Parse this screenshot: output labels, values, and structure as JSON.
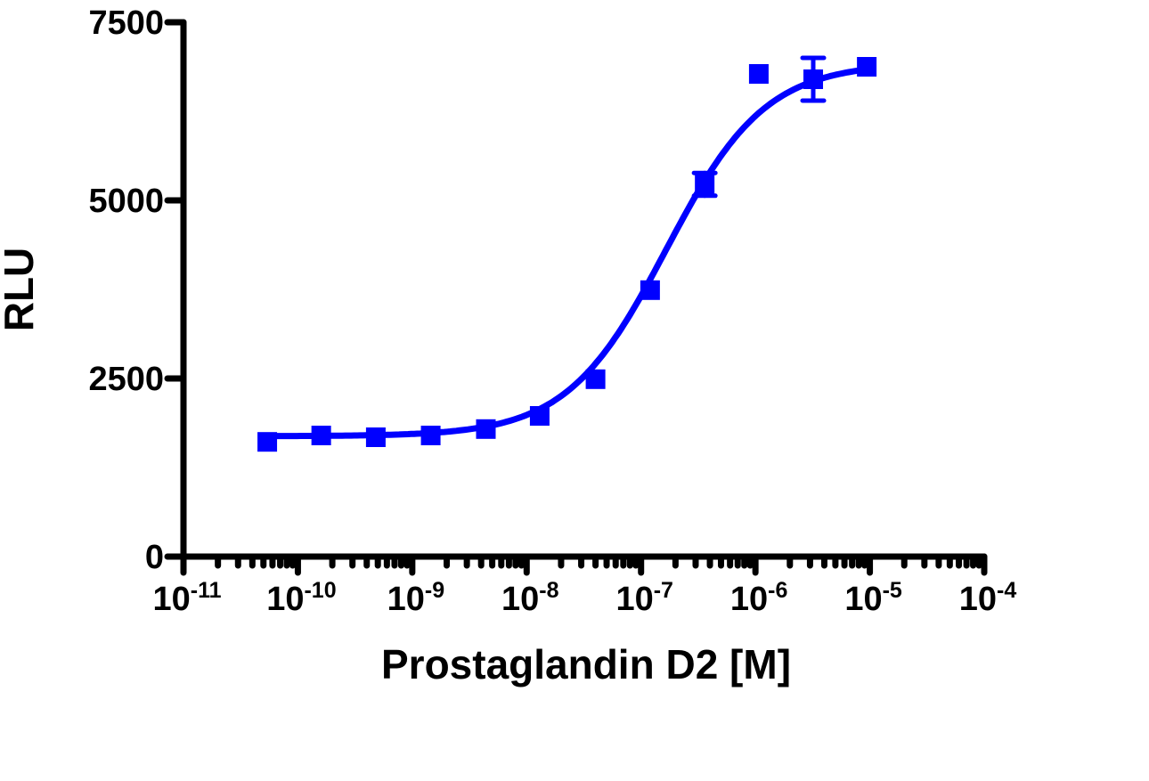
{
  "chart_data": {
    "type": "scatter",
    "title": "",
    "xlabel": "Prostaglandin D2 [M]",
    "ylabel": "RLU",
    "xscale": "log",
    "xlim": [
      1e-11,
      0.0001
    ],
    "ylim": [
      0,
      7500
    ],
    "grid": false,
    "legend": null,
    "y_ticks": [
      0,
      2500,
      5000,
      7500
    ],
    "y_tick_labels": [
      "0",
      "2500",
      "5000",
      "7500"
    ],
    "x_ticks_exponent": [
      -11,
      -10,
      -9,
      -8,
      -7,
      -6,
      -5,
      -4
    ],
    "x_tick_labels": [
      "10-11",
      "10-10",
      "10-9",
      "10-8",
      "10-7",
      "10-6",
      "10-5",
      "10-4"
    ],
    "series": [
      {
        "name": "Prostaglandin D2",
        "color": "#0000ff",
        "marker": "square",
        "fit": "sigmoidal dose-response",
        "x": [
          5.4e-11,
          1.6e-10,
          4.8e-10,
          1.45e-09,
          4.4e-09,
          1.3e-08,
          4e-08,
          1.2e-07,
          3.6e-07,
          1.07e-06,
          3.2e-06,
          9.4e-06
        ],
        "y": [
          1610,
          1700,
          1675,
          1700,
          1790,
          1975,
          2490,
          3740,
          5225,
          6775,
          6700,
          6875
        ],
        "error": [
          0,
          0,
          0,
          0,
          0,
          0,
          0,
          0,
          160,
          0,
          300,
          0
        ]
      }
    ],
    "fit_params": {
      "bottom": 1690,
      "top": 6930,
      "log_ec50": -6.78,
      "hill_slope": 1.0
    }
  }
}
